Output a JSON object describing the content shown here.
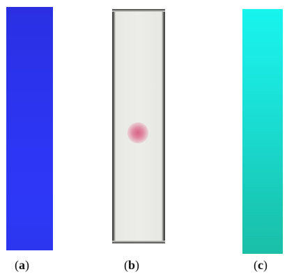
{
  "panels": [
    {
      "label_open": "(",
      "letter": "a",
      "label_close": ")",
      "strip_color": "#2d36f4"
    },
    {
      "label_open": "(",
      "letter": "b",
      "label_close": ")",
      "strip_color": "#ecece9",
      "spot_color": "#d65c80"
    },
    {
      "label_open": "(",
      "letter": "c",
      "label_close": ")",
      "strip_color": "#1ad8cc"
    }
  ]
}
